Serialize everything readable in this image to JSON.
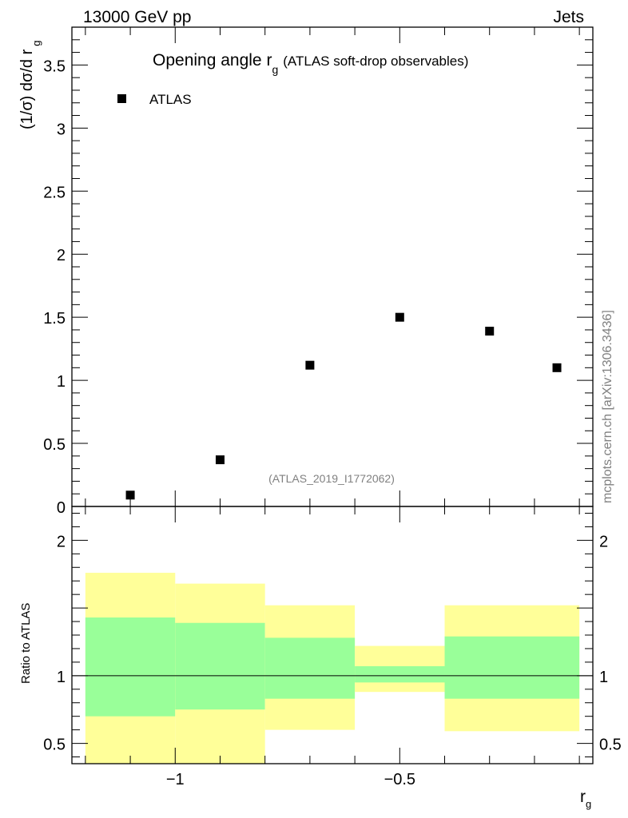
{
  "header": {
    "left": "13000 GeV pp",
    "right": "Jets"
  },
  "side_credit": "mcplots.cern.ch [arXiv:1306.3436]",
  "chart_data": [
    {
      "type": "scatter",
      "title_main": "Opening angle r",
      "title_sub": "g",
      "title_rest": "(ATLAS soft-drop observables)",
      "ylabel": "(1/σ) dσ/d r",
      "ylabel_sub": "g",
      "analysis_tag": "(ATLAS_2019_I1772062)",
      "ylim": [
        0,
        3.8
      ],
      "xlim": [
        -1.23,
        -0.07
      ],
      "yticks": [
        0,
        0.5,
        1,
        1.5,
        2,
        2.5,
        3,
        3.5
      ],
      "ytick_labels": [
        "0",
        "0.5",
        "1",
        "1.5",
        "2",
        "2.5",
        "3",
        "3.5"
      ],
      "legend": [
        {
          "name": "ATLAS",
          "marker": "square",
          "color": "#000000"
        }
      ],
      "series": [
        {
          "name": "ATLAS",
          "x": [
            -1.1,
            -0.9,
            -0.7,
            -0.5,
            -0.3,
            -0.15
          ],
          "y": [
            0.09,
            0.37,
            1.12,
            1.5,
            1.39,
            1.1
          ]
        }
      ]
    },
    {
      "type": "area",
      "ylabel": "Ratio to ATLAS",
      "xlabel": "r",
      "xlabel_sub": "g",
      "ylim": [
        0.35,
        2.25
      ],
      "xlim": [
        -1.23,
        -0.07
      ],
      "yticks": [
        0.5,
        1,
        2
      ],
      "ytick_labels": [
        "0.5",
        "1",
        "2"
      ],
      "xticks": [
        -1,
        -0.5
      ],
      "xtick_labels": [
        "−1",
        "−0.5"
      ],
      "reference_line": 1,
      "bins": [
        {
          "xlo": -1.2,
          "xhi": -1.0,
          "yellow": [
            0.35,
            1.76
          ],
          "green": [
            0.7,
            1.43
          ]
        },
        {
          "xlo": -1.0,
          "xhi": -0.8,
          "yellow": [
            0.35,
            1.68
          ],
          "green": [
            0.75,
            1.39
          ]
        },
        {
          "xlo": -0.8,
          "xhi": -0.6,
          "yellow": [
            0.6,
            1.52
          ],
          "green": [
            0.83,
            1.28
          ]
        },
        {
          "xlo": -0.6,
          "xhi": -0.4,
          "yellow": [
            0.88,
            1.22
          ],
          "green": [
            0.95,
            1.07
          ]
        },
        {
          "xlo": -0.4,
          "xhi": -0.1,
          "yellow": [
            0.59,
            1.52
          ],
          "green": [
            0.83,
            1.29
          ]
        }
      ],
      "band_colors": {
        "yellow": "#ffff99",
        "green": "#99ff99"
      }
    }
  ]
}
